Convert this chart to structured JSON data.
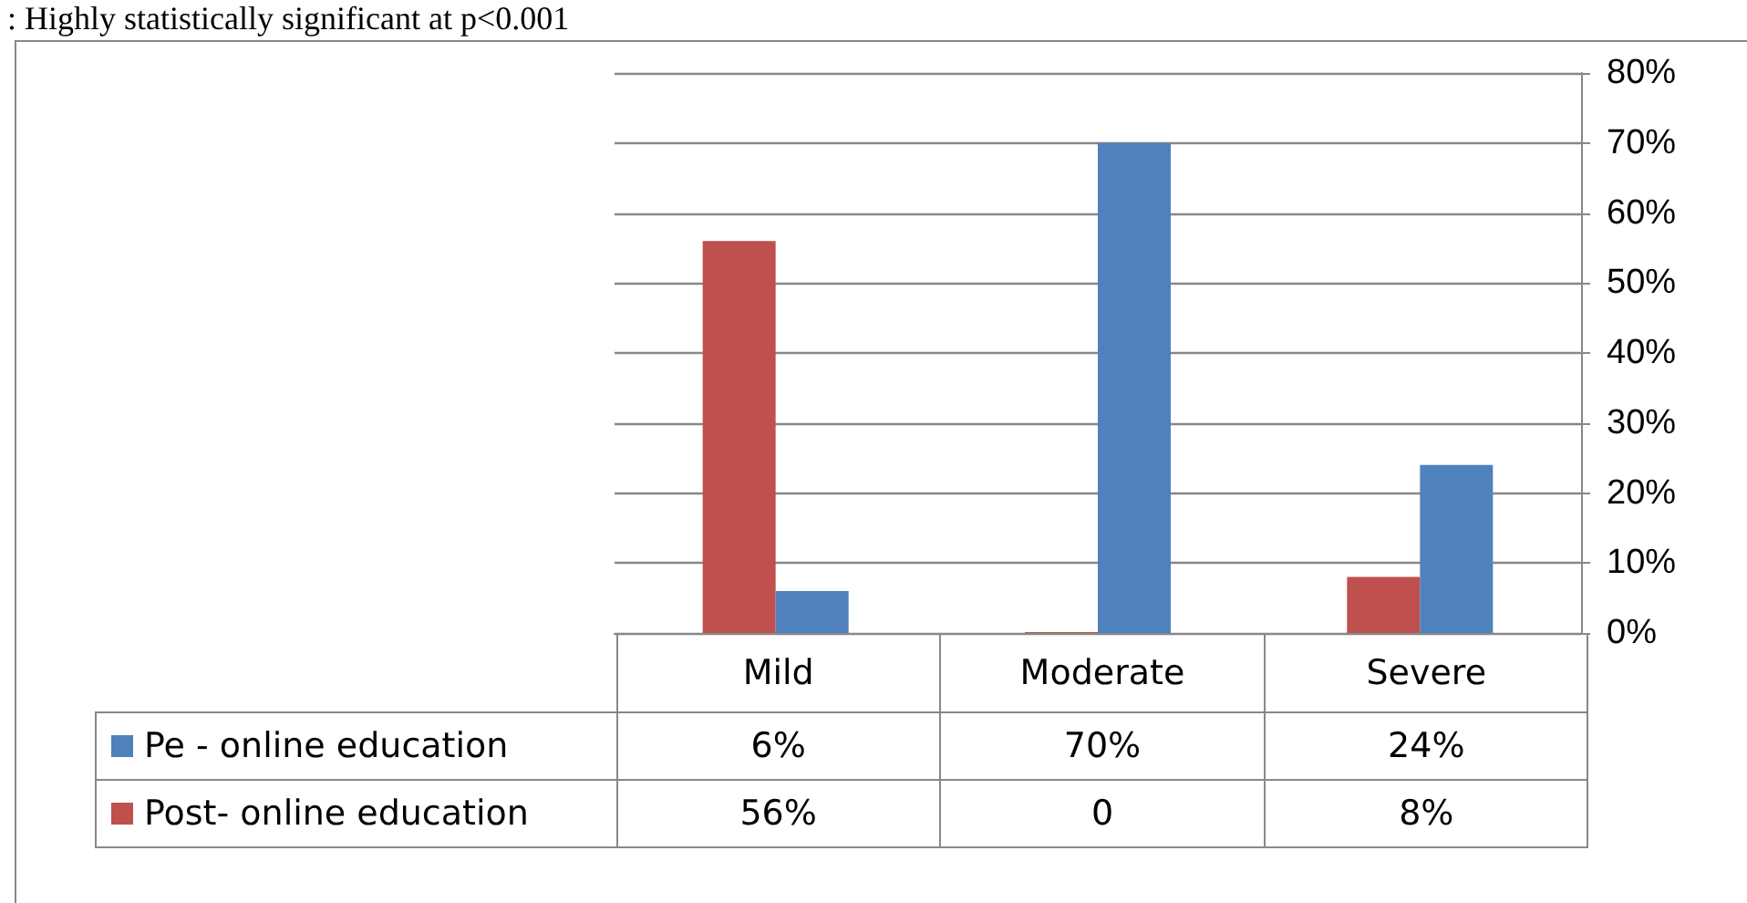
{
  "chart_data": {
    "type": "bar",
    "categories": [
      "Mild",
      "Moderate",
      "Severe"
    ],
    "series": [
      {
        "name": "Pe - online education",
        "color": "#4f81bd",
        "values": [
          6,
          70,
          24
        ],
        "value_labels": [
          "6%",
          "70%",
          "24%"
        ]
      },
      {
        "name": "Post- online education",
        "color": "#c0504d",
        "values": [
          56,
          0,
          8
        ],
        "value_labels": [
          "56%",
          "0",
          "8%"
        ]
      }
    ],
    "ylim": [
      0,
      80
    ],
    "yticks": [
      {
        "value": 0,
        "label": "0%"
      },
      {
        "value": 10,
        "label": "10%"
      },
      {
        "value": 20,
        "label": "20%"
      },
      {
        "value": 30,
        "label": "30%"
      },
      {
        "value": 40,
        "label": "40%"
      },
      {
        "value": 50,
        "label": "50%"
      },
      {
        "value": 60,
        "label": "60%"
      },
      {
        "value": 70,
        "label": "70%"
      },
      {
        "value": 80,
        "label": "80%"
      }
    ],
    "grid": "y",
    "legend": "bottom",
    "annotations": [
      ": Highly statistically significant at p<0.001"
    ]
  }
}
